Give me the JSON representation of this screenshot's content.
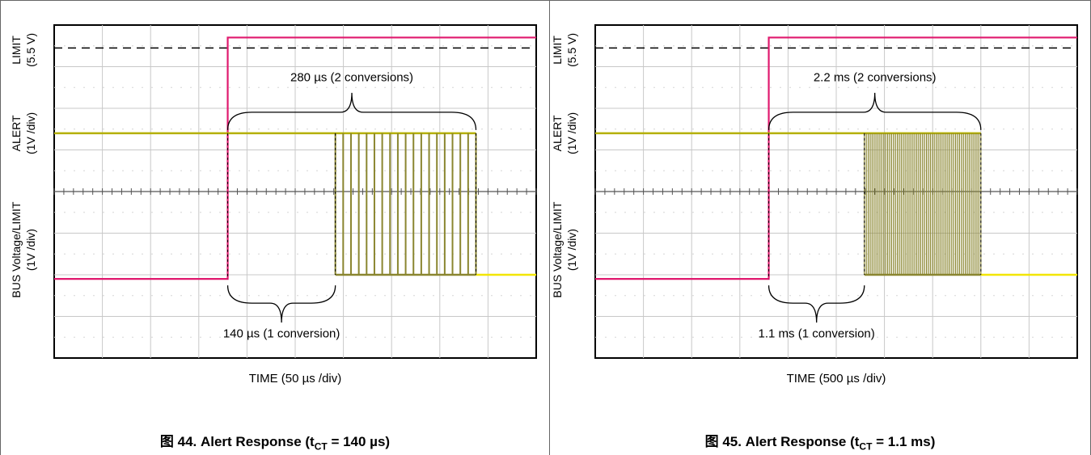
{
  "chart_data": [
    {
      "type": "line",
      "xlabel": "TIME (50 µs /div)",
      "y_labels": {
        "limit": "LIMIT",
        "limit_unit": "(5.5 V)",
        "alert": "ALERT",
        "alert_unit": "(1V /div)",
        "bus": "BUS Voltage/LIMIT",
        "bus_unit": "(1V /div)"
      },
      "annotation_top": "280 µs (2 conversions)",
      "annotation_bottom": "140 µs (1 conversion)",
      "caption_prefix": "图 44. Alert Response (t",
      "caption_sub": "CT",
      "caption_suffix": " = 140 µs)",
      "grid": true,
      "divisions": {
        "x": 10,
        "y": 8
      },
      "step_div": 3.6,
      "alert_start_div": 7.0,
      "alert_end_div": 10.5,
      "pulse_count": 18,
      "colors": {
        "bus": "#e0196e",
        "alert": "#b5b000",
        "alert_dark": "#8a8630",
        "tail": "#f2e600"
      }
    },
    {
      "type": "line",
      "xlabel": "TIME (500 µs /div)",
      "y_labels": {
        "limit": "LIMIT",
        "limit_unit": "(5.5 V)",
        "alert": "ALERT",
        "alert_unit": "(1V /div)",
        "bus": "BUS Voltage/LIMIT",
        "bus_unit": "(1V /div)"
      },
      "annotation_top": "2.2 ms (2 conversions)",
      "annotation_bottom": "1.1 ms (1 conversion)",
      "caption_prefix": "图 45. Alert Response (t",
      "caption_sub": "CT",
      "caption_suffix": " = 1.1 ms)",
      "grid": true,
      "divisions": {
        "x": 10,
        "y": 8
      },
      "step_div": 3.6,
      "alert_start_div": 6.7,
      "alert_end_div": 9.6,
      "pulse_count": 60,
      "colors": {
        "bus": "#e0196e",
        "alert": "#b5b000",
        "alert_dark": "#8a8630",
        "tail": "#f2e600"
      }
    }
  ]
}
